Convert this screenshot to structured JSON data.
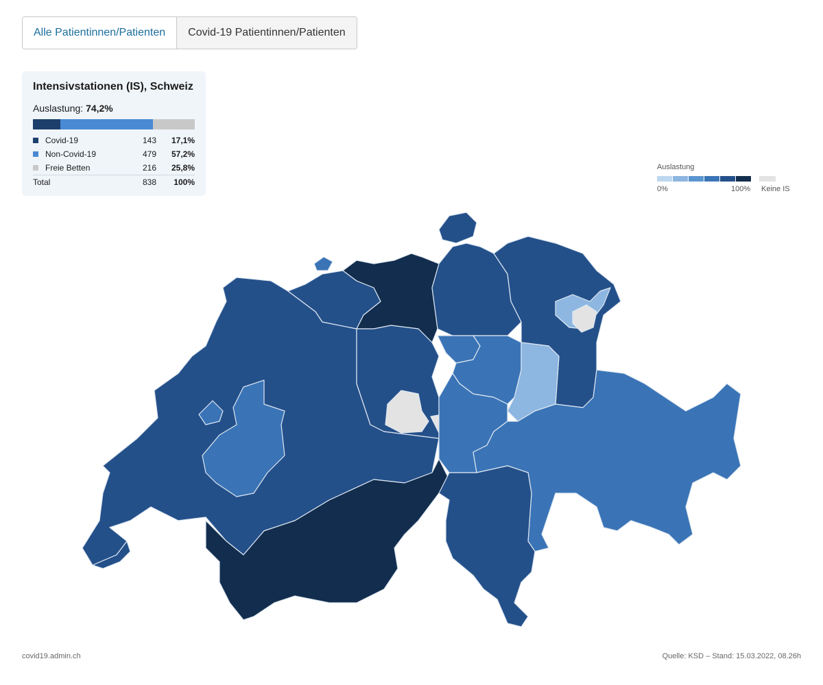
{
  "tabs": [
    {
      "label": "Alle Patientinnen/Patienten",
      "active": true
    },
    {
      "label": "Covid-19 Patientinnen/Patienten",
      "active": false
    }
  ],
  "summary": {
    "title": "Intensivstationen (IS), Schweiz",
    "utilization_label": "Auslastung:",
    "utilization_value": "74,2%",
    "bar_fractions": {
      "covid": 0.171,
      "non_covid": 0.572,
      "free": 0.258
    },
    "rows": [
      {
        "label": "Covid-19",
        "count": "143",
        "pct": "17,1%",
        "color": "#1c3f6b"
      },
      {
        "label": "Non-Covid-19",
        "count": "479",
        "pct": "57,2%",
        "color": "#4a8ad4"
      },
      {
        "label": "Freie Betten",
        "count": "216",
        "pct": "25,8%",
        "color": "#c8c8c8"
      }
    ],
    "total": {
      "label": "Total",
      "count": "838",
      "pct": "100%"
    }
  },
  "legend": {
    "title": "Auslastung",
    "min_label": "0%",
    "max_label": "100%",
    "no_icu_label": "Keine IS",
    "ramp_colors": [
      "#bdd7ee",
      "#8db6e0",
      "#5b95d0",
      "#3a74b6",
      "#24508a",
      "#122d4d"
    ],
    "no_icu_color": "#e3e3e3"
  },
  "map_colors": {
    "very_high": "#122d4d",
    "high": "#24508a",
    "medium": "#3a74b6",
    "low": "#8db6e0",
    "no_icu": "#e3e3e3",
    "border": "#dfe8f2"
  },
  "footer": {
    "left": "covid19.admin.ch",
    "right": "Quelle: KSD – Stand: 15.03.2022, 08.26h"
  }
}
